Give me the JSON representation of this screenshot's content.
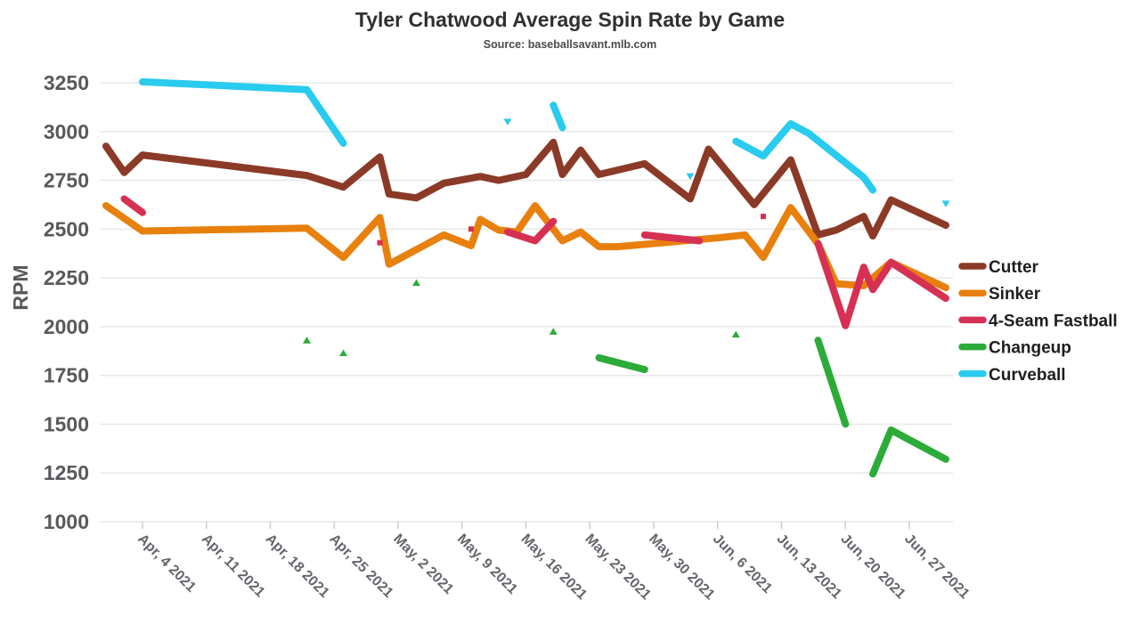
{
  "title": "Tyler Chatwood Average Spin Rate by Game",
  "subtitle": "Source: baseballsavant.mlb.com",
  "chart_data": {
    "type": "line",
    "title": "Tyler Chatwood Average Spin Rate by Game",
    "subtitle": "Source: baseballsavant.mlb.com",
    "xlabel": "",
    "ylabel": "RPM",
    "ylim": [
      1000,
      3250
    ],
    "grid": true,
    "legend_position": "right",
    "yticks": [
      3250,
      3000,
      2750,
      2500,
      2250,
      2000,
      1750,
      1500,
      1250,
      1000
    ],
    "xticks": [
      "Apr, 4 2021",
      "Apr, 11 2021",
      "Apr, 18 2021",
      "Apr, 25 2021",
      "May, 2 2021",
      "May, 9 2021",
      "May, 16 2021",
      "May, 23 2021",
      "May, 30 2021",
      "Jun, 6 2021",
      "Jun, 13 2021",
      "Jun, 20 2021",
      "Jun, 27 2021"
    ],
    "series": [
      {
        "name": "Cutter",
        "color": "#8B3A27",
        "marker": "square",
        "segments": [
          [
            [
              "Mar 31",
              2925
            ],
            [
              "Apr 2",
              2790
            ],
            [
              "Apr 4",
              2880
            ],
            [
              "Apr 22",
              2775
            ],
            [
              "Apr 26",
              2715
            ],
            [
              "Apr 30",
              2870
            ],
            [
              "May 1",
              2680
            ],
            [
              "May 4",
              2660
            ],
            [
              "May 7",
              2735
            ],
            [
              "May 11",
              2770
            ],
            [
              "May 13",
              2750
            ],
            [
              "May 16",
              2780
            ],
            [
              "May 19",
              2945
            ],
            [
              "May 20",
              2780
            ],
            [
              "May 22",
              2905
            ],
            [
              "May 24",
              2780
            ],
            [
              "May 29",
              2835
            ],
            [
              "Jun 3",
              2655
            ],
            [
              "Jun 5",
              2910
            ],
            [
              "Jun 10",
              2625
            ],
            [
              "Jun 14",
              2855
            ],
            [
              "Jun 17",
              2470
            ],
            [
              "Jun 19",
              2495
            ],
            [
              "Jun 22",
              2565
            ],
            [
              "Jun 23",
              2465
            ],
            [
              "Jun 25",
              2650
            ],
            [
              "Jul 1",
              2520
            ]
          ]
        ]
      },
      {
        "name": "Sinker",
        "color": "#E8800E",
        "marker": "square",
        "segments": [
          [
            [
              "Mar 31",
              2620
            ],
            [
              "Apr 4",
              2490
            ],
            [
              "Apr 22",
              2505
            ],
            [
              "Apr 26",
              2355
            ],
            [
              "Apr 30",
              2560
            ],
            [
              "May 1",
              2320
            ],
            [
              "May 7",
              2470
            ],
            [
              "May 10",
              2415
            ],
            [
              "May 11",
              2550
            ],
            [
              "May 13",
              2495
            ],
            [
              "May 15",
              2485
            ],
            [
              "May 17",
              2620
            ],
            [
              "May 20",
              2440
            ],
            [
              "May 22",
              2485
            ],
            [
              "May 24",
              2410
            ],
            [
              "May 26",
              2410
            ],
            [
              "Jun 6",
              2455
            ],
            [
              "Jun 9",
              2470
            ],
            [
              "Jun 11",
              2355
            ],
            [
              "Jun 14",
              2610
            ],
            [
              "Jun 17",
              2425
            ],
            [
              "Jun 19",
              2220
            ],
            [
              "Jun 22",
              2210
            ],
            [
              "Jun 25",
              2330
            ],
            [
              "Jul 1",
              2200
            ]
          ]
        ]
      },
      {
        "name": "4-Seam Fastball",
        "color": "#D63153",
        "marker": "square",
        "segments": [
          [
            [
              "Apr 2",
              2655
            ],
            [
              "Apr 4",
              2585
            ]
          ],
          [
            [
              "Apr 30",
              2430
            ]
          ],
          [
            [
              "May 10",
              2500
            ]
          ],
          [
            [
              "May 14",
              2485
            ],
            [
              "May 17",
              2440
            ],
            [
              "May 19",
              2540
            ]
          ],
          [
            [
              "May 29",
              2470
            ],
            [
              "Jun 4",
              2440
            ]
          ],
          [
            [
              "Jun 11",
              2565
            ]
          ],
          [
            [
              "Jun 17",
              2425
            ],
            [
              "Jun 20",
              2005
            ],
            [
              "Jun 22",
              2305
            ],
            [
              "Jun 23",
              2190
            ],
            [
              "Jun 25",
              2330
            ],
            [
              "Jul 1",
              2145
            ]
          ]
        ]
      },
      {
        "name": "Changeup",
        "color": "#2CAB39",
        "marker": "triangle-up",
        "segments": [
          [
            [
              "Apr 22",
              1930
            ]
          ],
          [
            [
              "Apr 26",
              1865
            ]
          ],
          [
            [
              "May 4",
              2225
            ]
          ],
          [
            [
              "May 19",
              1975
            ]
          ],
          [
            [
              "May 24",
              1840
            ],
            [
              "May 29",
              1780
            ]
          ],
          [
            [
              "Jun 8",
              1960
            ]
          ],
          [
            [
              "Jun 17",
              1930
            ],
            [
              "Jun 20",
              1500
            ]
          ],
          [
            [
              "Jun 23",
              1245
            ],
            [
              "Jun 25",
              1470
            ],
            [
              "Jul 1",
              1320
            ]
          ]
        ]
      },
      {
        "name": "Curveball",
        "color": "#29CBEE",
        "marker": "triangle-down",
        "segments": [
          [
            [
              "Apr 4",
              3255
            ],
            [
              "Apr 22",
              3215
            ],
            [
              "Apr 26",
              2940
            ]
          ],
          [
            [
              "May 14",
              3050
            ]
          ],
          [
            [
              "May 19",
              3135
            ],
            [
              "May 20",
              3020
            ]
          ],
          [
            [
              "Jun 3",
              2770
            ]
          ],
          [
            [
              "Jun 8",
              2950
            ],
            [
              "Jun 11",
              2875
            ],
            [
              "Jun 14",
              3040
            ],
            [
              "Jun 16",
              2990
            ],
            [
              "Jun 22",
              2765
            ],
            [
              "Jun 23",
              2700
            ]
          ],
          [
            [
              "Jul 1",
              2630
            ]
          ]
        ]
      }
    ]
  }
}
